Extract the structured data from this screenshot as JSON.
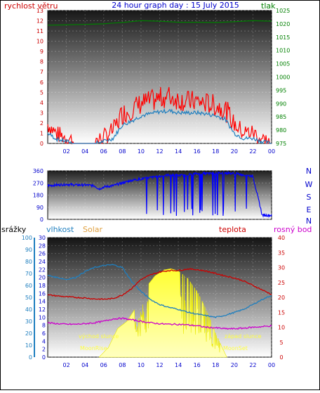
{
  "header": {
    "left_label": "rychlost větru",
    "title": "24 hour graph day : 15 July 2015",
    "right_label": "tlak"
  },
  "panel_labels": {
    "srazky": "srážky",
    "vlhkost": "vlhkost",
    "solar": "Solar",
    "teplota": "teplota",
    "rosny_bod": "rosný bod"
  },
  "annotations": {
    "sunrise": "východ slunce",
    "sunset": "západ slunce",
    "moonrise": "MoonRise",
    "moonset": "MoonSet"
  },
  "colors": {
    "wind": "#ff0000",
    "wind_avg": "#1f7fbf",
    "pressure": "#008000",
    "direction": "#0000ff",
    "humidity": "#1f7fbf",
    "temperature": "#cc0000",
    "dewpoint": "#cc00cc",
    "solar": "#ffff00",
    "title": "#0000cc",
    "left_axis": "#cc0000",
    "right_axis": "#008000",
    "rain_axis": "#1f7fbf",
    "temp_axis": "#cc0000"
  },
  "chart_data": [
    {
      "type": "line",
      "name_in_image": "wind and pressure",
      "x_ticks": [
        "02",
        "04",
        "06",
        "08",
        "10",
        "12",
        "14",
        "16",
        "18",
        "20",
        "22",
        "00"
      ],
      "x_range_hours": [
        0,
        24
      ],
      "y_left": {
        "label": "rychlost větru",
        "range": [
          0,
          13
        ],
        "ticks": [
          0,
          1,
          2,
          3,
          4,
          5,
          6,
          7,
          8,
          9,
          10,
          11,
          12,
          13
        ]
      },
      "y_right": {
        "label": "tlak",
        "range": [
          975,
          1025
        ],
        "ticks": [
          975,
          980,
          985,
          990,
          995,
          1000,
          1005,
          1010,
          1015,
          1020,
          1025
        ]
      },
      "series": [
        {
          "name": "tlak",
          "axis": "right",
          "x": [
            0,
            2,
            4,
            6,
            7,
            8,
            10,
            12,
            14,
            16,
            18,
            20,
            22,
            24
          ],
          "y": [
            1019.5,
            1019.6,
            1019.8,
            1020.0,
            1020.3,
            1020.5,
            1021.2,
            1021.0,
            1020.6,
            1020.6,
            1020.5,
            1020.8,
            1021.2,
            1021.0
          ]
        },
        {
          "name": "rychlost větru (gust)",
          "axis": "left",
          "x": [
            0,
            1,
            2,
            3,
            4,
            5,
            6,
            7,
            8,
            9,
            10,
            11,
            12,
            13,
            14,
            15,
            16,
            17,
            18,
            19,
            20,
            21,
            22,
            23,
            24
          ],
          "y": [
            1.8,
            0.8,
            0.5,
            0,
            0,
            0,
            0.5,
            1.2,
            2.8,
            3.2,
            3.8,
            4.0,
            4.3,
            4.5,
            4.2,
            4.0,
            4.0,
            3.8,
            3.6,
            3.3,
            1.8,
            1.0,
            1.0,
            0.3,
            0
          ]
        },
        {
          "name": "rychlost větru (avg)",
          "axis": "left",
          "x": [
            0,
            1,
            2,
            3,
            4,
            5,
            6,
            7,
            8,
            9,
            10,
            11,
            12,
            13,
            14,
            15,
            16,
            17,
            18,
            19,
            20,
            21,
            22,
            23,
            24
          ],
          "y": [
            1.0,
            0.4,
            0.2,
            0,
            0,
            0,
            0.2,
            0.5,
            1.8,
            2.2,
            2.7,
            2.9,
            3.1,
            3.2,
            3.0,
            3.0,
            3.0,
            2.9,
            2.7,
            2.4,
            1.0,
            0.5,
            0.5,
            0.2,
            0
          ]
        }
      ]
    },
    {
      "type": "line",
      "name_in_image": "wind direction",
      "x_range_hours": [
        0,
        24
      ],
      "y_left": {
        "range": [
          0,
          360
        ],
        "ticks": [
          0,
          90,
          180,
          270,
          360
        ]
      },
      "y_right_labels": [
        "N",
        "W",
        "S",
        "E",
        "N"
      ],
      "series": [
        {
          "name": "direction",
          "x": [
            0,
            1,
            2,
            3,
            4,
            5,
            5.5,
            6,
            7,
            8,
            9,
            10,
            11,
            12,
            13,
            14,
            15,
            16,
            17,
            18,
            19,
            20,
            21,
            22,
            23,
            24
          ],
          "y": [
            250,
            255,
            260,
            255,
            255,
            250,
            225,
            240,
            250,
            270,
            290,
            300,
            310,
            320,
            330,
            325,
            330,
            340,
            340,
            340,
            345,
            340,
            330,
            320,
            30,
            30
          ]
        }
      ]
    },
    {
      "type": "area",
      "name_in_image": "humidity temperature dewpoint solar",
      "x_ticks": [
        "02",
        "04",
        "06",
        "08",
        "10",
        "12",
        "14",
        "16",
        "18",
        "20",
        "22",
        "00"
      ],
      "x_range_hours": [
        0,
        24
      ],
      "y_left_rain": {
        "label": "srážky",
        "range": [
          0,
          100
        ],
        "ticks": [
          0,
          10,
          20,
          30,
          40,
          50,
          60,
          70,
          80,
          90,
          100
        ]
      },
      "y_left_humidity": {
        "label": "vlhkost",
        "range": [
          0,
          30
        ],
        "ticks": [
          0,
          2,
          4,
          6,
          8,
          10,
          12,
          14,
          16,
          18,
          20,
          22,
          24,
          26,
          28,
          30
        ]
      },
      "y_right": {
        "label": "teplota",
        "range": [
          0,
          40
        ],
        "ticks": [
          0,
          5,
          10,
          15,
          20,
          25,
          30,
          35,
          40
        ]
      },
      "series": [
        {
          "name": "vlhkost",
          "axis": "humidity",
          "x": [
            0,
            1,
            2,
            3,
            4,
            5,
            6,
            7,
            8,
            9,
            10,
            11,
            12,
            13,
            14,
            15,
            16,
            17,
            18,
            19,
            20,
            21,
            22,
            23,
            24
          ],
          "y": [
            20.5,
            20.0,
            19.5,
            20.0,
            21.5,
            22.5,
            23.0,
            23.2,
            22.5,
            19.0,
            16.5,
            14.5,
            13.2,
            12.5,
            12.0,
            11.3,
            10.8,
            10.4,
            10.0,
            10.5,
            11.2,
            12.0,
            13.2,
            14.5,
            15.5
          ]
        },
        {
          "name": "teplota",
          "axis": "temp",
          "x": [
            0,
            1,
            2,
            3,
            4,
            5,
            6,
            7,
            8,
            9,
            10,
            11,
            12,
            13,
            14,
            15,
            16,
            17,
            18,
            19,
            20,
            21,
            22,
            23,
            24
          ],
          "y": [
            20.8,
            20.5,
            20.2,
            20.0,
            19.8,
            19.5,
            19.4,
            19.6,
            20.8,
            23.0,
            26.0,
            27.5,
            28.5,
            29.0,
            29.0,
            29.5,
            29.3,
            28.8,
            28.0,
            27.2,
            26.5,
            25.5,
            24.0,
            22.5,
            21.0
          ]
        },
        {
          "name": "rosný bod",
          "axis": "temp",
          "x": [
            0,
            1,
            2,
            3,
            4,
            5,
            6,
            7,
            8,
            9,
            10,
            11,
            12,
            13,
            14,
            15,
            16,
            17,
            18,
            19,
            20,
            21,
            22,
            23,
            24
          ],
          "y": [
            11.5,
            11.2,
            11.0,
            11.0,
            11.2,
            11.5,
            12.0,
            12.8,
            13.0,
            12.5,
            12.0,
            11.5,
            11.2,
            11.0,
            11.0,
            10.8,
            10.5,
            10.0,
            9.8,
            9.5,
            9.5,
            9.7,
            10.0,
            10.2,
            10.5
          ]
        },
        {
          "name": "Solar",
          "axis": "rain",
          "x": [
            5.5,
            6.5,
            7.5,
            8.5,
            9.5,
            10.5,
            11.5,
            12.5,
            13.2,
            14.0,
            15.0,
            16.0,
            17.0,
            18.0,
            18.7,
            19.2
          ],
          "y": [
            0,
            8,
            24,
            30,
            42,
            58,
            68,
            73,
            74,
            72,
            66,
            55,
            40,
            20,
            8,
            0
          ]
        }
      ]
    }
  ]
}
